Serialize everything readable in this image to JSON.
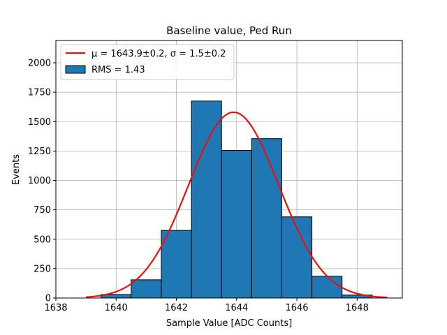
{
  "chart_data": {
    "type": "bar",
    "title": "Baseline value, Ped Run",
    "xlabel": "Sample Value [ADC Counts]",
    "ylabel": "Events",
    "xlim": [
      1638,
      1649.5
    ],
    "ylim": [
      0,
      2190
    ],
    "xticks": [
      1638,
      1640,
      1642,
      1644,
      1646,
      1648
    ],
    "yticks": [
      0,
      250,
      500,
      750,
      1000,
      1250,
      1500,
      1750,
      2000
    ],
    "grid": true,
    "legend_position": "top-left",
    "histogram": {
      "name": "RMS = 1.43",
      "bin_width": 1,
      "bins": [
        {
          "x0": 1639.5,
          "x1": 1640.5,
          "value": 30
        },
        {
          "x0": 1640.5,
          "x1": 1641.5,
          "value": 155
        },
        {
          "x0": 1641.5,
          "x1": 1642.5,
          "value": 575
        },
        {
          "x0": 1642.5,
          "x1": 1643.5,
          "value": 1675
        },
        {
          "x0": 1643.5,
          "x1": 1644.5,
          "value": 1255
        },
        {
          "x0": 1644.5,
          "x1": 1645.5,
          "value": 1355
        },
        {
          "x0": 1645.5,
          "x1": 1646.5,
          "value": 690
        },
        {
          "x0": 1646.5,
          "x1": 1647.5,
          "value": 185
        },
        {
          "x0": 1647.5,
          "x1": 1648.5,
          "value": 25
        }
      ],
      "color": "#1f77b4",
      "edgecolor": "#000000"
    },
    "fit": {
      "name": "μ = 1643.9±0.2, σ = 1.5±0.2",
      "type": "gaussian",
      "mu": 1643.9,
      "sigma": 1.5,
      "amplitude": 1580,
      "x_range": [
        1639,
        1649
      ],
      "color": "#e8110f"
    }
  }
}
